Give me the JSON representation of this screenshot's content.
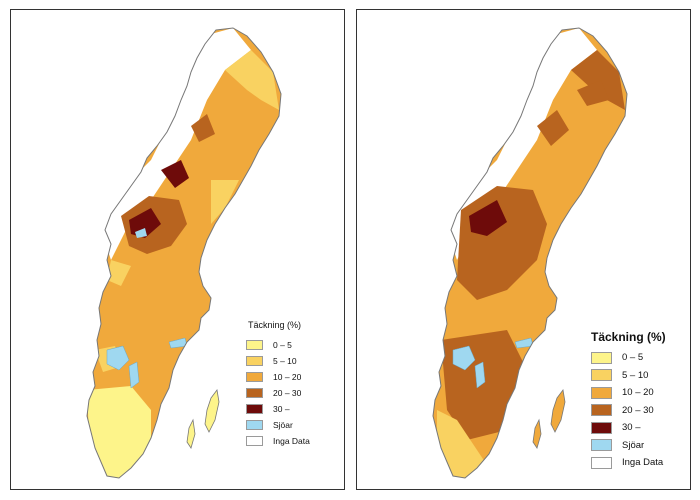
{
  "maps": [
    {
      "legend": {
        "title": "Täckning (%)",
        "items": [
          {
            "label": "0 – 5",
            "color": "#fdf48a"
          },
          {
            "label": "5 – 10",
            "color": "#f9d261"
          },
          {
            "label": "10 – 20",
            "color": "#f0a93c"
          },
          {
            "label": "20 – 30",
            "color": "#b8641f"
          },
          {
            "label": "30 –",
            "color": "#6e0b0a"
          },
          {
            "label": "Sjöar",
            "color": "#9fd8f0"
          },
          {
            "label": "Inga Data",
            "color": "#ffffff"
          }
        ]
      }
    },
    {
      "legend": {
        "title": "Täckning (%)",
        "items": [
          {
            "label": "0 – 5",
            "color": "#fdf48a"
          },
          {
            "label": "5 – 10",
            "color": "#f9d261"
          },
          {
            "label": "10 – 20",
            "color": "#f0a93c"
          },
          {
            "label": "20 – 30",
            "color": "#b8641f"
          },
          {
            "label": "30 –",
            "color": "#6e0b0a"
          },
          {
            "label": "Sjöar",
            "color": "#9fd8f0"
          },
          {
            "label": "Inga Data",
            "color": "#ffffff"
          }
        ]
      }
    }
  ]
}
